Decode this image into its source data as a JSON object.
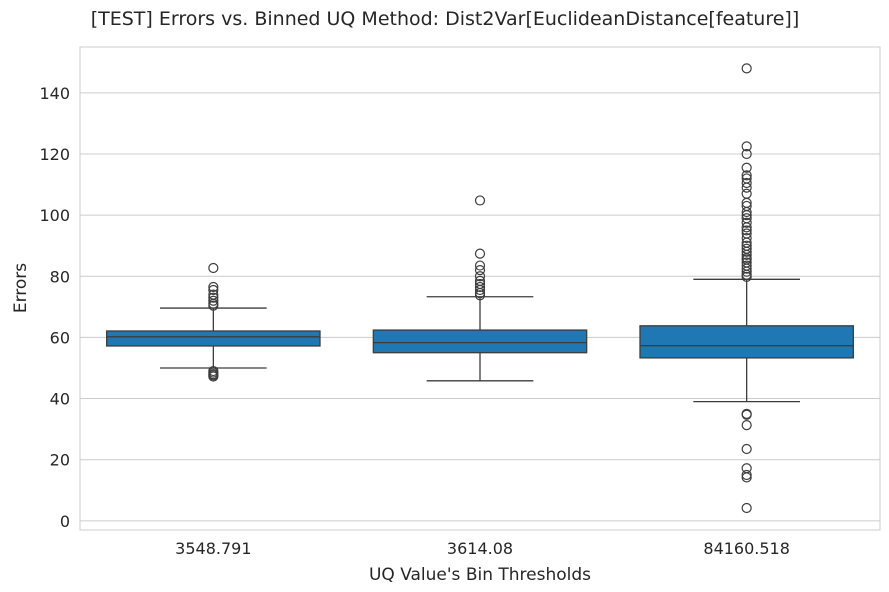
{
  "chart_data": {
    "type": "box",
    "title": "[TEST] Errors vs. Binned UQ Method: Dist2Var[EuclideanDistance[feature]]",
    "xlabel": "UQ Value's Bin Thresholds",
    "ylabel": "Errors",
    "ylim": [
      -3,
      155
    ],
    "yticks": [
      0,
      20,
      40,
      60,
      80,
      100,
      120,
      140
    ],
    "grid": "horizontal",
    "colors": {
      "box": "#1f77b4",
      "line": "#3d3d3d",
      "grid": "#cccccc"
    },
    "categories": [
      "3548.791",
      "3614.08",
      "84160.518"
    ],
    "boxes": [
      {
        "category": "3548.791",
        "whisker_low": 50,
        "q1": 57.2,
        "median": 60.2,
        "q3": 62.1,
        "whisker_high": 69.6,
        "outliers": [
          82.7,
          76.5,
          75.5,
          74,
          73,
          72,
          71,
          70.4,
          49,
          48.5,
          48,
          47.6,
          47.2
        ]
      },
      {
        "category": "3614.08",
        "whisker_low": 45.8,
        "q1": 55,
        "median": 58.3,
        "q3": 62.4,
        "whisker_high": 73.3,
        "outliers": [
          104.8,
          87.4,
          83.5,
          82,
          80,
          78.5,
          77.5,
          76.5,
          75.5,
          74.5,
          73.8
        ]
      },
      {
        "category": "84160.518",
        "whisker_low": 39,
        "q1": 53.3,
        "median": 57.3,
        "q3": 63.8,
        "whisker_high": 79,
        "outliers": [
          148,
          122.5,
          120,
          115.5,
          113,
          112,
          110.5,
          109,
          107,
          104,
          103,
          101,
          100,
          99,
          97.5,
          96,
          95,
          94,
          92.5,
          91,
          90,
          89,
          88,
          87,
          86,
          85.5,
          84.5,
          83.5,
          82.5,
          81.5,
          80.5,
          79.8,
          35,
          34.7,
          31.3,
          23.5,
          17.2,
          15,
          14.2,
          4.2
        ]
      }
    ]
  }
}
